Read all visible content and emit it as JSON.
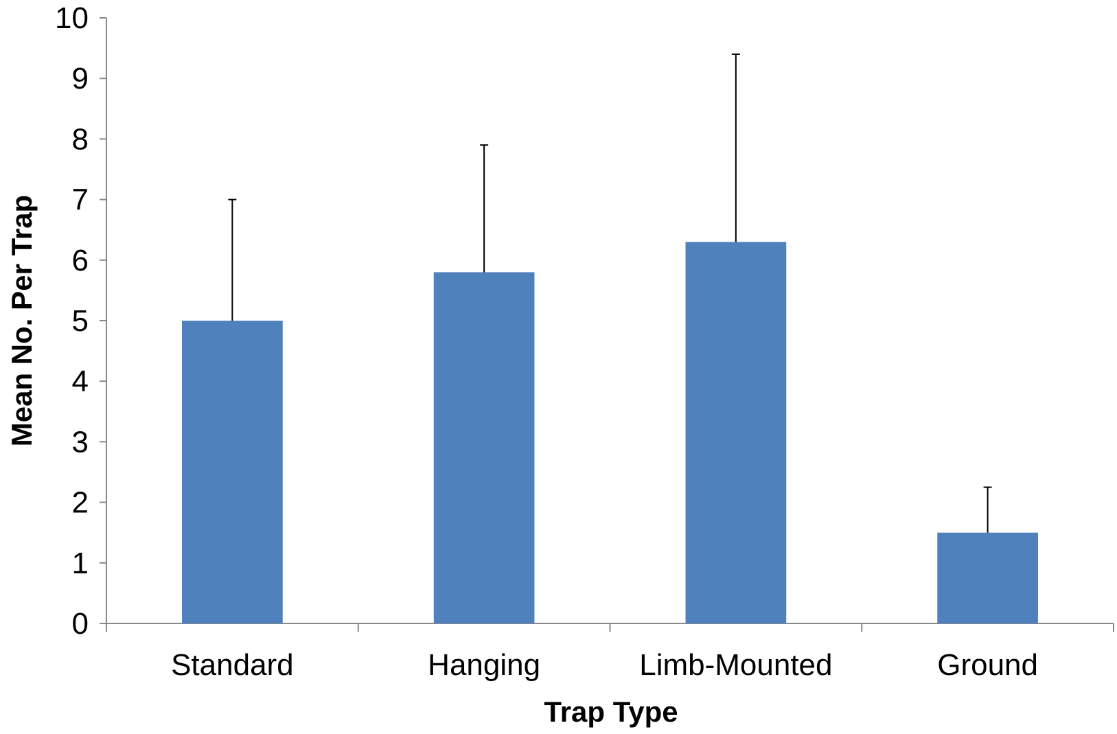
{
  "chart_data": {
    "type": "bar",
    "title": "",
    "xlabel": "Trap Type",
    "ylabel": "Mean No. Per Trap",
    "categories": [
      "Standard",
      "Hanging",
      "Limb-Mounted",
      "Ground"
    ],
    "series": [
      {
        "values": [
          5.0,
          5.8,
          6.3,
          1.5
        ],
        "error_upper": [
          2.0,
          2.1,
          3.1,
          0.75
        ],
        "color": "#4F81BD"
      }
    ],
    "ylim": [
      0,
      10
    ],
    "yticks": [
      "0",
      "1",
      "2",
      "3",
      "4",
      "5",
      "6",
      "7",
      "8",
      "9",
      "10"
    ],
    "grid": false,
    "legend": "none"
  }
}
